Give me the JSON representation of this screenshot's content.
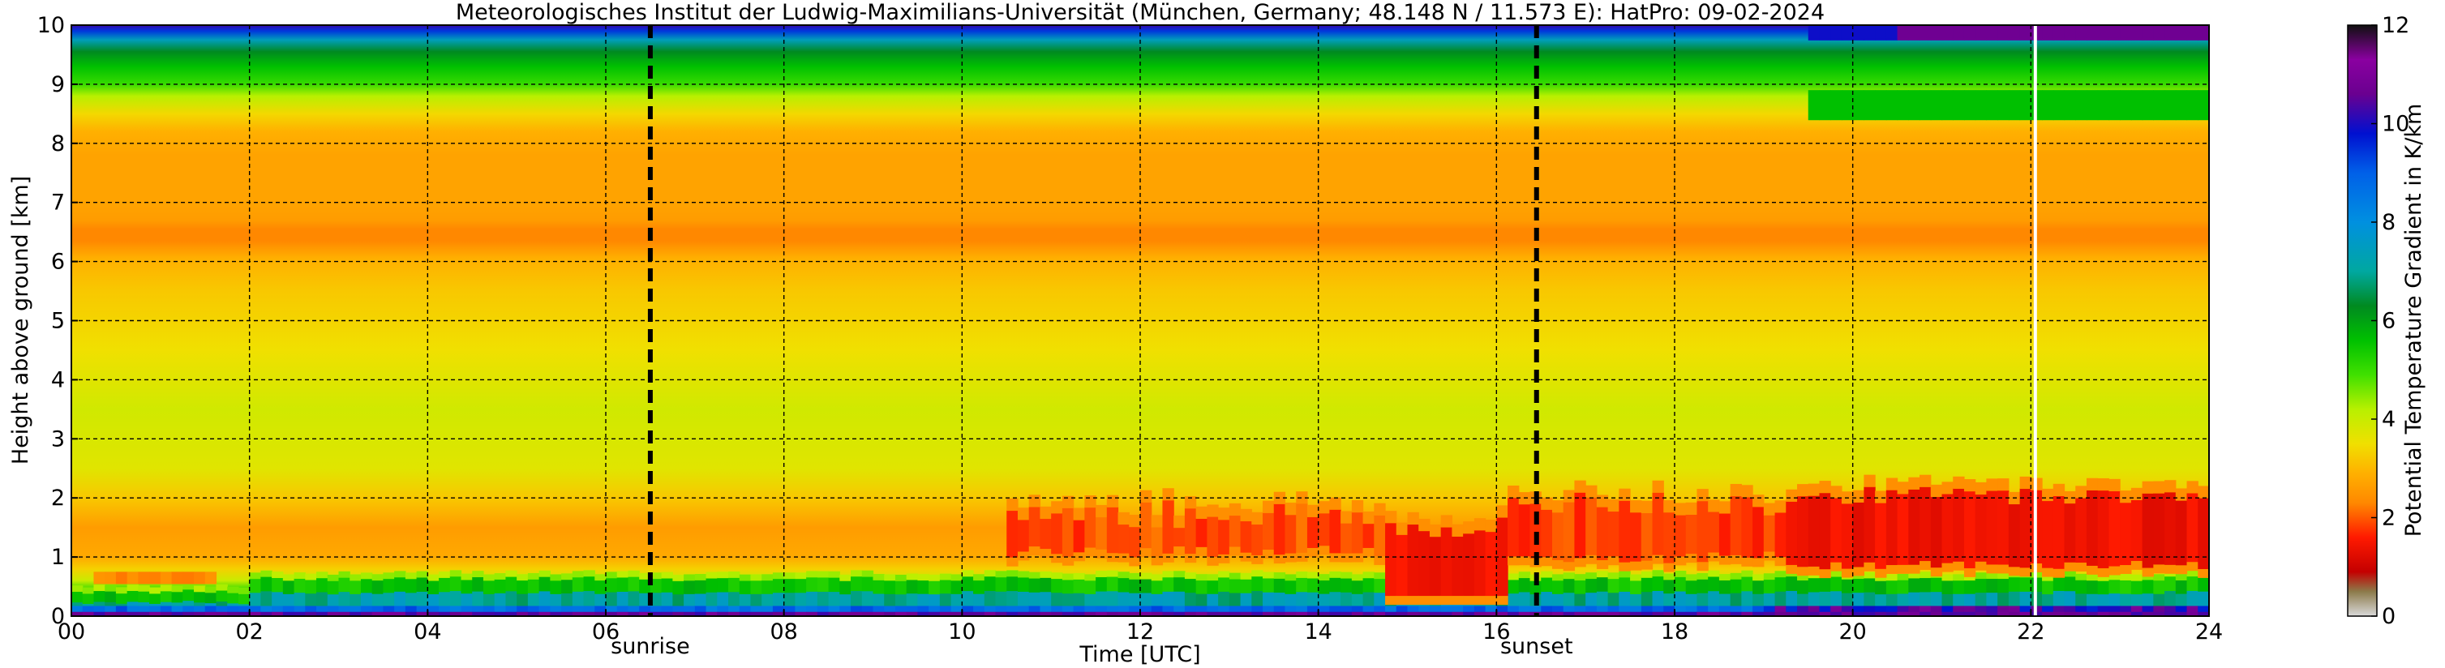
{
  "chart_data": {
    "type": "heatmap",
    "title": "Meteorologisches Institut der Ludwig-Maximilians-Universität (München, Germany; 48.148 N / 11.573 E):    HatPro: 09-02-2024",
    "xlabel": "Time [UTC]",
    "ylabel": "Height above ground [km]",
    "xlim": [
      0,
      24
    ],
    "ylim": [
      0,
      10
    ],
    "x_ticks": [
      "00",
      "02",
      "04",
      "06",
      "08",
      "10",
      "12",
      "14",
      "16",
      "18",
      "20",
      "22",
      "24"
    ],
    "y_ticks": [
      "0",
      "1",
      "2",
      "3",
      "4",
      "5",
      "6",
      "7",
      "8",
      "9",
      "10"
    ],
    "grid": true,
    "events": [
      {
        "name": "sunrise",
        "time": 6.5
      },
      {
        "name": "sunset",
        "time": 16.45
      }
    ],
    "data_gap_time": 22.05,
    "colorbar": {
      "label": "Potential Temperature Gradient in K/km",
      "range": [
        0,
        12
      ],
      "ticks": [
        "0",
        "2",
        "4",
        "6",
        "8",
        "10",
        "12"
      ],
      "stops": [
        {
          "value": 0.0,
          "color": "#d9d9d9"
        },
        {
          "value": 0.5,
          "color": "#8c7a4a"
        },
        {
          "value": 0.9,
          "color": "#c40000"
        },
        {
          "value": 1.6,
          "color": "#ff1a00"
        },
        {
          "value": 2.3,
          "color": "#ff8800"
        },
        {
          "value": 2.9,
          "color": "#ffb000"
        },
        {
          "value": 3.5,
          "color": "#f0e000"
        },
        {
          "value": 4.2,
          "color": "#b8f000"
        },
        {
          "value": 4.9,
          "color": "#40e000"
        },
        {
          "value": 5.6,
          "color": "#00c000"
        },
        {
          "value": 6.3,
          "color": "#008a20"
        },
        {
          "value": 7.0,
          "color": "#00a8a0"
        },
        {
          "value": 8.0,
          "color": "#0090e0"
        },
        {
          "value": 9.0,
          "color": "#0060e8"
        },
        {
          "value": 9.8,
          "color": "#0010d0"
        },
        {
          "value": 10.6,
          "color": "#6a0090"
        },
        {
          "value": 11.3,
          "color": "#8a00a0"
        },
        {
          "value": 12.0,
          "color": "#101010"
        }
      ]
    }
  }
}
